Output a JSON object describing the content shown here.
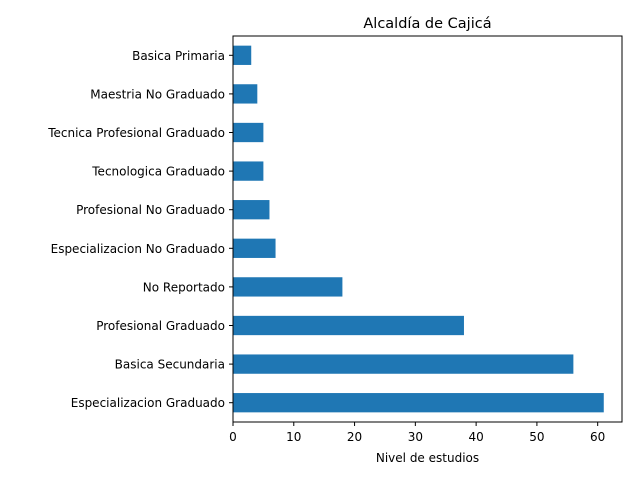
{
  "chart_data": {
    "type": "bar",
    "orientation": "horizontal",
    "title": "Alcaldía de Cajicá",
    "xlabel": "Nivel de estudios",
    "ylabel": "",
    "categories": [
      "Especializacion Graduado",
      "Basica Secundaria",
      "Profesional Graduado",
      "No Reportado",
      "Especializacion No Graduado",
      "Profesional No Graduado",
      "Tecnologica Graduado",
      "Tecnica Profesional Graduado",
      "Maestria No Graduado",
      "Basica Primaria"
    ],
    "values": [
      61,
      56,
      38,
      18,
      7,
      6,
      5,
      5,
      4,
      3
    ],
    "xlim": [
      0,
      64
    ],
    "xticks": [
      0,
      10,
      20,
      30,
      40,
      50,
      60
    ],
    "grid": false,
    "bar_color": "#1f77b4"
  }
}
